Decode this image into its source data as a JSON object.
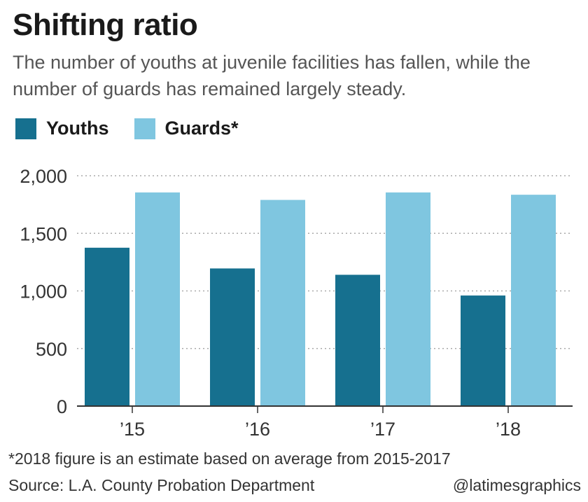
{
  "header": {
    "title": "Shifting ratio",
    "subtitle": "The number of youths at juvenile facilities has fallen, while the number of guards has remained largely steady."
  },
  "legend": {
    "youths_label": "Youths",
    "guards_label": "Guards*"
  },
  "colors": {
    "youths": "#16708f",
    "guards": "#7fc6e0",
    "grid": "#aaaaaa",
    "axis": "#333333"
  },
  "chart_data": {
    "type": "bar",
    "categories": [
      "’15",
      "’16",
      "’17",
      "’18"
    ],
    "series": [
      {
        "name": "Youths",
        "values": [
          1375,
          1195,
          1140,
          960
        ]
      },
      {
        "name": "Guards*",
        "values": [
          1855,
          1790,
          1855,
          1835
        ]
      }
    ],
    "yticks": [
      "0",
      "500",
      "1,000",
      "1,500",
      "2,000"
    ],
    "ytick_values": [
      0,
      500,
      1000,
      1500,
      2000
    ],
    "ylim": [
      0,
      2000
    ],
    "grid": true,
    "legend_position": "top-left"
  },
  "footer": {
    "footnote": "*2018 figure is an estimate based on average from 2015-2017",
    "source": "Source: L.A. County Probation Department",
    "credit": "@latimesgraphics"
  }
}
